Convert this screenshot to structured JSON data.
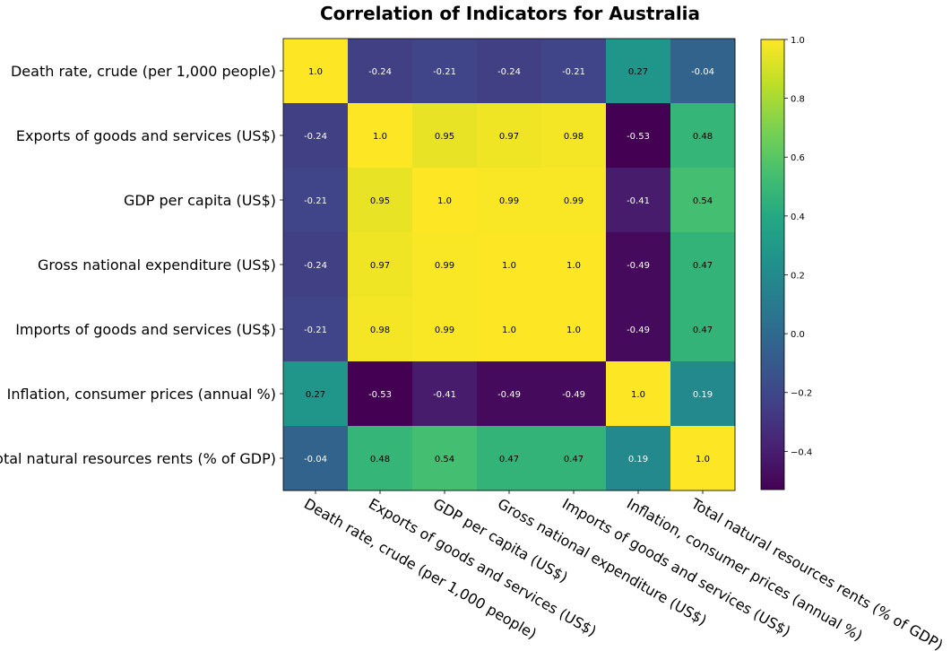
{
  "chart_data": {
    "type": "heatmap",
    "title": "Correlation of Indicators for Australia",
    "row_labels": [
      "Death rate, crude (per 1,000 people)",
      "Exports of goods and services (US$)",
      "GDP per capita (US$)",
      "Gross national expenditure (US$)",
      "Imports of goods and services (US$)",
      "Inflation, consumer prices (annual %)",
      "Total natural resources rents (% of GDP)"
    ],
    "col_labels": [
      "Death rate, crude (per 1,000 people)",
      "Exports of goods and services (US$)",
      "GDP per capita (US$)",
      "Gross national expenditure (US$)",
      "Imports of goods and services (US$)",
      "Inflation, consumer prices (annual %)",
      "Total natural resources rents (% of GDP)"
    ],
    "values": [
      [
        1.0,
        -0.24,
        -0.21,
        -0.24,
        -0.21,
        0.27,
        -0.04
      ],
      [
        -0.24,
        1.0,
        0.95,
        0.97,
        0.98,
        -0.53,
        0.48
      ],
      [
        -0.21,
        0.95,
        1.0,
        0.99,
        0.99,
        -0.41,
        0.54
      ],
      [
        -0.24,
        0.97,
        0.99,
        1.0,
        1.0,
        -0.49,
        0.47
      ],
      [
        -0.21,
        0.98,
        0.99,
        1.0,
        1.0,
        -0.49,
        0.47
      ],
      [
        0.27,
        -0.53,
        -0.41,
        -0.49,
        -0.49,
        1.0,
        0.19
      ],
      [
        -0.04,
        0.48,
        0.54,
        0.47,
        0.47,
        0.19,
        1.0
      ]
    ],
    "cell_text": [
      [
        "1.0",
        "-0.24",
        "-0.21",
        "-0.24",
        "-0.21",
        "0.27",
        "-0.04"
      ],
      [
        "-0.24",
        "1.0",
        "0.95",
        "0.97",
        "0.98",
        "-0.53",
        "0.48"
      ],
      [
        "-0.21",
        "0.95",
        "1.0",
        "0.99",
        "0.99",
        "-0.41",
        "0.54"
      ],
      [
        "-0.24",
        "0.97",
        "0.99",
        "1.0",
        "1.0",
        "-0.49",
        "0.47"
      ],
      [
        "-0.21",
        "0.98",
        "0.99",
        "1.0",
        "1.0",
        "-0.49",
        "0.47"
      ],
      [
        "0.27",
        "-0.53",
        "-0.41",
        "-0.49",
        "-0.49",
        "1.0",
        "0.19"
      ],
      [
        "-0.04",
        "0.48",
        "0.54",
        "0.47",
        "0.47",
        "0.19",
        "1.0"
      ]
    ],
    "colormap": "viridis",
    "color_range": [
      -0.53,
      1.0
    ],
    "colorbar": {
      "ticks": [
        -0.4,
        -0.2,
        0.0,
        0.2,
        0.4,
        0.6,
        0.8,
        1.0
      ],
      "tick_labels": [
        "−0.4",
        "−0.2",
        "0.0",
        "0.2",
        "0.4",
        "0.6",
        "0.8",
        "1.0"
      ]
    },
    "grid": false
  }
}
